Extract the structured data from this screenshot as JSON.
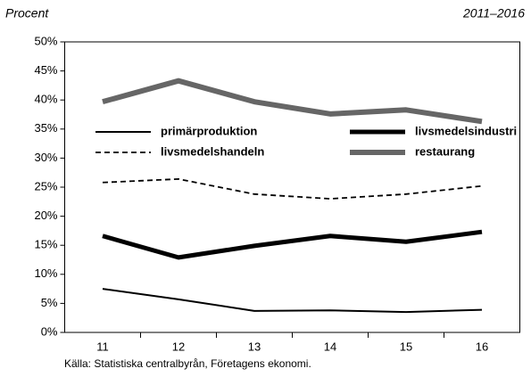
{
  "chart_data": {
    "type": "line",
    "header_left": "Procent",
    "header_right": "2011–2016",
    "source": "Källa: Statistiska centralbyrån, Företagens ekonomi.",
    "categories": [
      "11",
      "12",
      "13",
      "14",
      "15",
      "16"
    ],
    "series": [
      {
        "name": "primärproduktion",
        "color": "#000000",
        "width": 2,
        "style": "solid",
        "values": [
          7.5,
          5.7,
          3.7,
          3.8,
          3.5,
          3.9
        ]
      },
      {
        "name": "livsmedelsindustri",
        "color": "#000000",
        "width": 5,
        "style": "solid",
        "values": [
          16.6,
          12.9,
          14.9,
          16.6,
          15.6,
          17.3
        ]
      },
      {
        "name": "livsmedelshandeln",
        "color": "#000000",
        "width": 1.8,
        "style": "dashed",
        "values": [
          25.8,
          26.4,
          23.8,
          23.0,
          23.8,
          25.2
        ]
      },
      {
        "name": "restaurang",
        "color": "#666666",
        "width": 6,
        "style": "solid",
        "values": [
          39.7,
          43.3,
          39.7,
          37.6,
          38.3,
          36.3
        ]
      }
    ],
    "ylim": [
      0,
      50
    ],
    "yticks": [
      {
        "value": 0,
        "label": "0%"
      },
      {
        "value": 5,
        "label": "5%"
      },
      {
        "value": 10,
        "label": "10%"
      },
      {
        "value": 15,
        "label": "15%"
      },
      {
        "value": 20,
        "label": "20%"
      },
      {
        "value": 25,
        "label": "25%"
      },
      {
        "value": 30,
        "label": "30%"
      },
      {
        "value": 35,
        "label": "35%"
      },
      {
        "value": 40,
        "label": "40%"
      },
      {
        "value": 45,
        "label": "45%"
      },
      {
        "value": 50,
        "label": "50%"
      }
    ],
    "grid": false,
    "legend": "inside-top"
  }
}
